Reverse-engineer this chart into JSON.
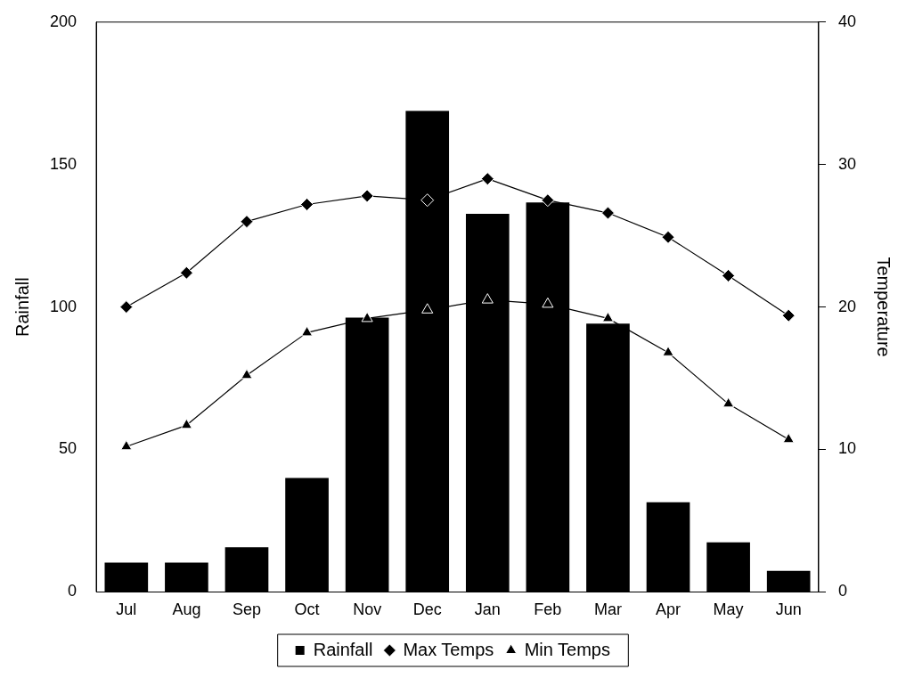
{
  "chart_data": {
    "type": "bar",
    "categories": [
      "Jul",
      "Aug",
      "Sep",
      "Oct",
      "Nov",
      "Dec",
      "Jan",
      "Feb",
      "Mar",
      "Apr",
      "May",
      "Jun"
    ],
    "series": [
      {
        "name": "Rainfall",
        "color": "#000000",
        "values": [
          10.3,
          10.3,
          15.7,
          40,
          96.3,
          168.8,
          132.7,
          136.7,
          94.2,
          31.5,
          17.4,
          7.4
        ]
      },
      {
        "name": "Max Temps",
        "type": "line",
        "axis": "y2",
        "marker": "diamond",
        "color": "#000000",
        "values": [
          20,
          22.4,
          26,
          27.2,
          27.8,
          27.5,
          29,
          27.5,
          26.6,
          24.9,
          22.2,
          19.4
        ]
      },
      {
        "name": "Min Temps",
        "type": "line",
        "axis": "y2",
        "marker": "triangle",
        "color": "#000000",
        "values": [
          10.2,
          11.7,
          15.2,
          18.2,
          19.2,
          19.8,
          20.5,
          20.2,
          19.2,
          16.8,
          13.2,
          10.7
        ]
      }
    ],
    "ylabel": "Rainfall",
    "y2label": "Temperature",
    "ylim": [
      0,
      200
    ],
    "yticks": [
      0,
      50,
      100,
      150,
      200
    ],
    "y2lim": [
      0,
      40
    ],
    "y2ticks": [
      0,
      10,
      20,
      30,
      40
    ],
    "grid": false,
    "legend": "bottom"
  }
}
